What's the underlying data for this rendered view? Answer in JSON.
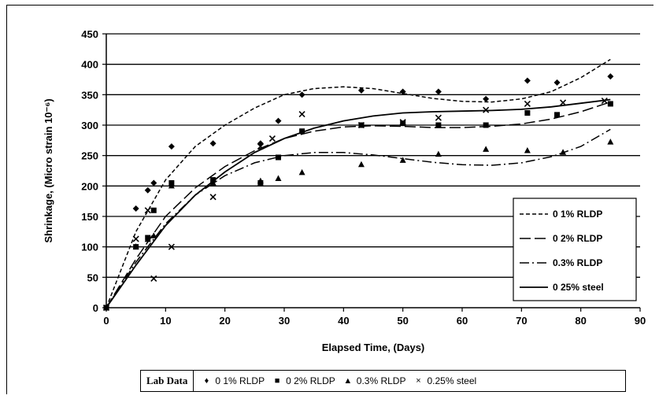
{
  "chart_data": {
    "type": "scatter",
    "xlabel": "Elapsed Time, (Days)",
    "ylabel": "Shrinkage, (Micro strain 10⁻⁶)",
    "xlim": [
      0,
      90
    ],
    "ylim": [
      0,
      450
    ],
    "x_ticks": [
      0,
      10,
      20,
      30,
      40,
      50,
      60,
      70,
      80,
      90
    ],
    "y_ticks": [
      0,
      50,
      100,
      150,
      200,
      250,
      300,
      350,
      400,
      450
    ],
    "grid": "horizontal",
    "legend_position": "right",
    "trend_legend": [
      {
        "label": "0 1% RLDP",
        "style": "short-dash"
      },
      {
        "label": "0 2% RLDP",
        "style": "long-dash"
      },
      {
        "label": "0.3% RLDP",
        "style": "dash-dot"
      },
      {
        "label": "0 25% steel",
        "style": "solid"
      }
    ],
    "lab_data_title": "Lab Data",
    "series": [
      {
        "label": "0 1% RLDP",
        "marker": "diamond",
        "marker_glyph": "♦",
        "x": [
          0,
          5,
          7,
          8,
          11,
          18,
          26,
          29,
          33,
          43,
          50,
          56,
          64,
          71,
          76,
          85
        ],
        "y": [
          0,
          163,
          193,
          205,
          265,
          270,
          270,
          307,
          350,
          357,
          355,
          355,
          343,
          373,
          370,
          380
        ],
        "trend_x": [
          0,
          5,
          10,
          15,
          20,
          25,
          30,
          35,
          40,
          45,
          50,
          55,
          60,
          65,
          70,
          75,
          80,
          85
        ],
        "trend_y": [
          0,
          125,
          210,
          265,
          300,
          328,
          350,
          360,
          363,
          360,
          352,
          344,
          339,
          338,
          343,
          355,
          378,
          408
        ]
      },
      {
        "label": "0 2% RLDP",
        "marker": "square",
        "marker_glyph": "■",
        "x": [
          0,
          5,
          7,
          8,
          11,
          18,
          26,
          29,
          33,
          43,
          50,
          56,
          64,
          71,
          76,
          85
        ],
        "y": [
          0,
          100,
          115,
          160,
          205,
          210,
          205,
          247,
          290,
          300,
          303,
          300,
          300,
          320,
          317,
          335
        ],
        "trend_x": [
          0,
          5,
          10,
          15,
          20,
          25,
          30,
          35,
          40,
          45,
          50,
          55,
          60,
          65,
          70,
          75,
          80,
          85
        ],
        "trend_y": [
          0,
          80,
          150,
          197,
          232,
          258,
          278,
          290,
          297,
          299,
          298,
          296,
          296,
          298,
          302,
          310,
          322,
          338
        ]
      },
      {
        "label": "0.3% RLDP",
        "marker": "triangle",
        "marker_glyph": "▲",
        "x": [
          0,
          5,
          7,
          8,
          11,
          18,
          26,
          29,
          33,
          43,
          50,
          56,
          64,
          71,
          77,
          85
        ],
        "y": [
          0,
          100,
          112,
          118,
          200,
          205,
          208,
          212,
          222,
          235,
          242,
          252,
          260,
          258,
          255,
          272
        ],
        "trend_x": [
          0,
          5,
          10,
          15,
          20,
          25,
          30,
          35,
          40,
          45,
          50,
          55,
          60,
          65,
          70,
          75,
          80,
          85
        ],
        "trend_y": [
          0,
          75,
          138,
          185,
          217,
          238,
          250,
          255,
          255,
          251,
          245,
          239,
          235,
          234,
          238,
          248,
          265,
          293
        ]
      },
      {
        "label": "0.25% steel",
        "marker": "x",
        "marker_glyph": "×",
        "x": [
          0,
          5,
          7,
          8,
          11,
          18,
          26,
          28,
          33,
          43,
          50,
          56,
          64,
          71,
          77,
          84
        ],
        "y": [
          0,
          113,
          160,
          48,
          100,
          182,
          265,
          278,
          318,
          300,
          305,
          312,
          325,
          335,
          337,
          340
        ],
        "trend_x": [
          0,
          5,
          10,
          15,
          20,
          25,
          30,
          35,
          40,
          45,
          50,
          55,
          60,
          65,
          70,
          75,
          80,
          85
        ],
        "trend_y": [
          0,
          70,
          135,
          185,
          223,
          255,
          278,
          295,
          307,
          315,
          320,
          322,
          323,
          324,
          326,
          330,
          336,
          342
        ]
      }
    ]
  }
}
